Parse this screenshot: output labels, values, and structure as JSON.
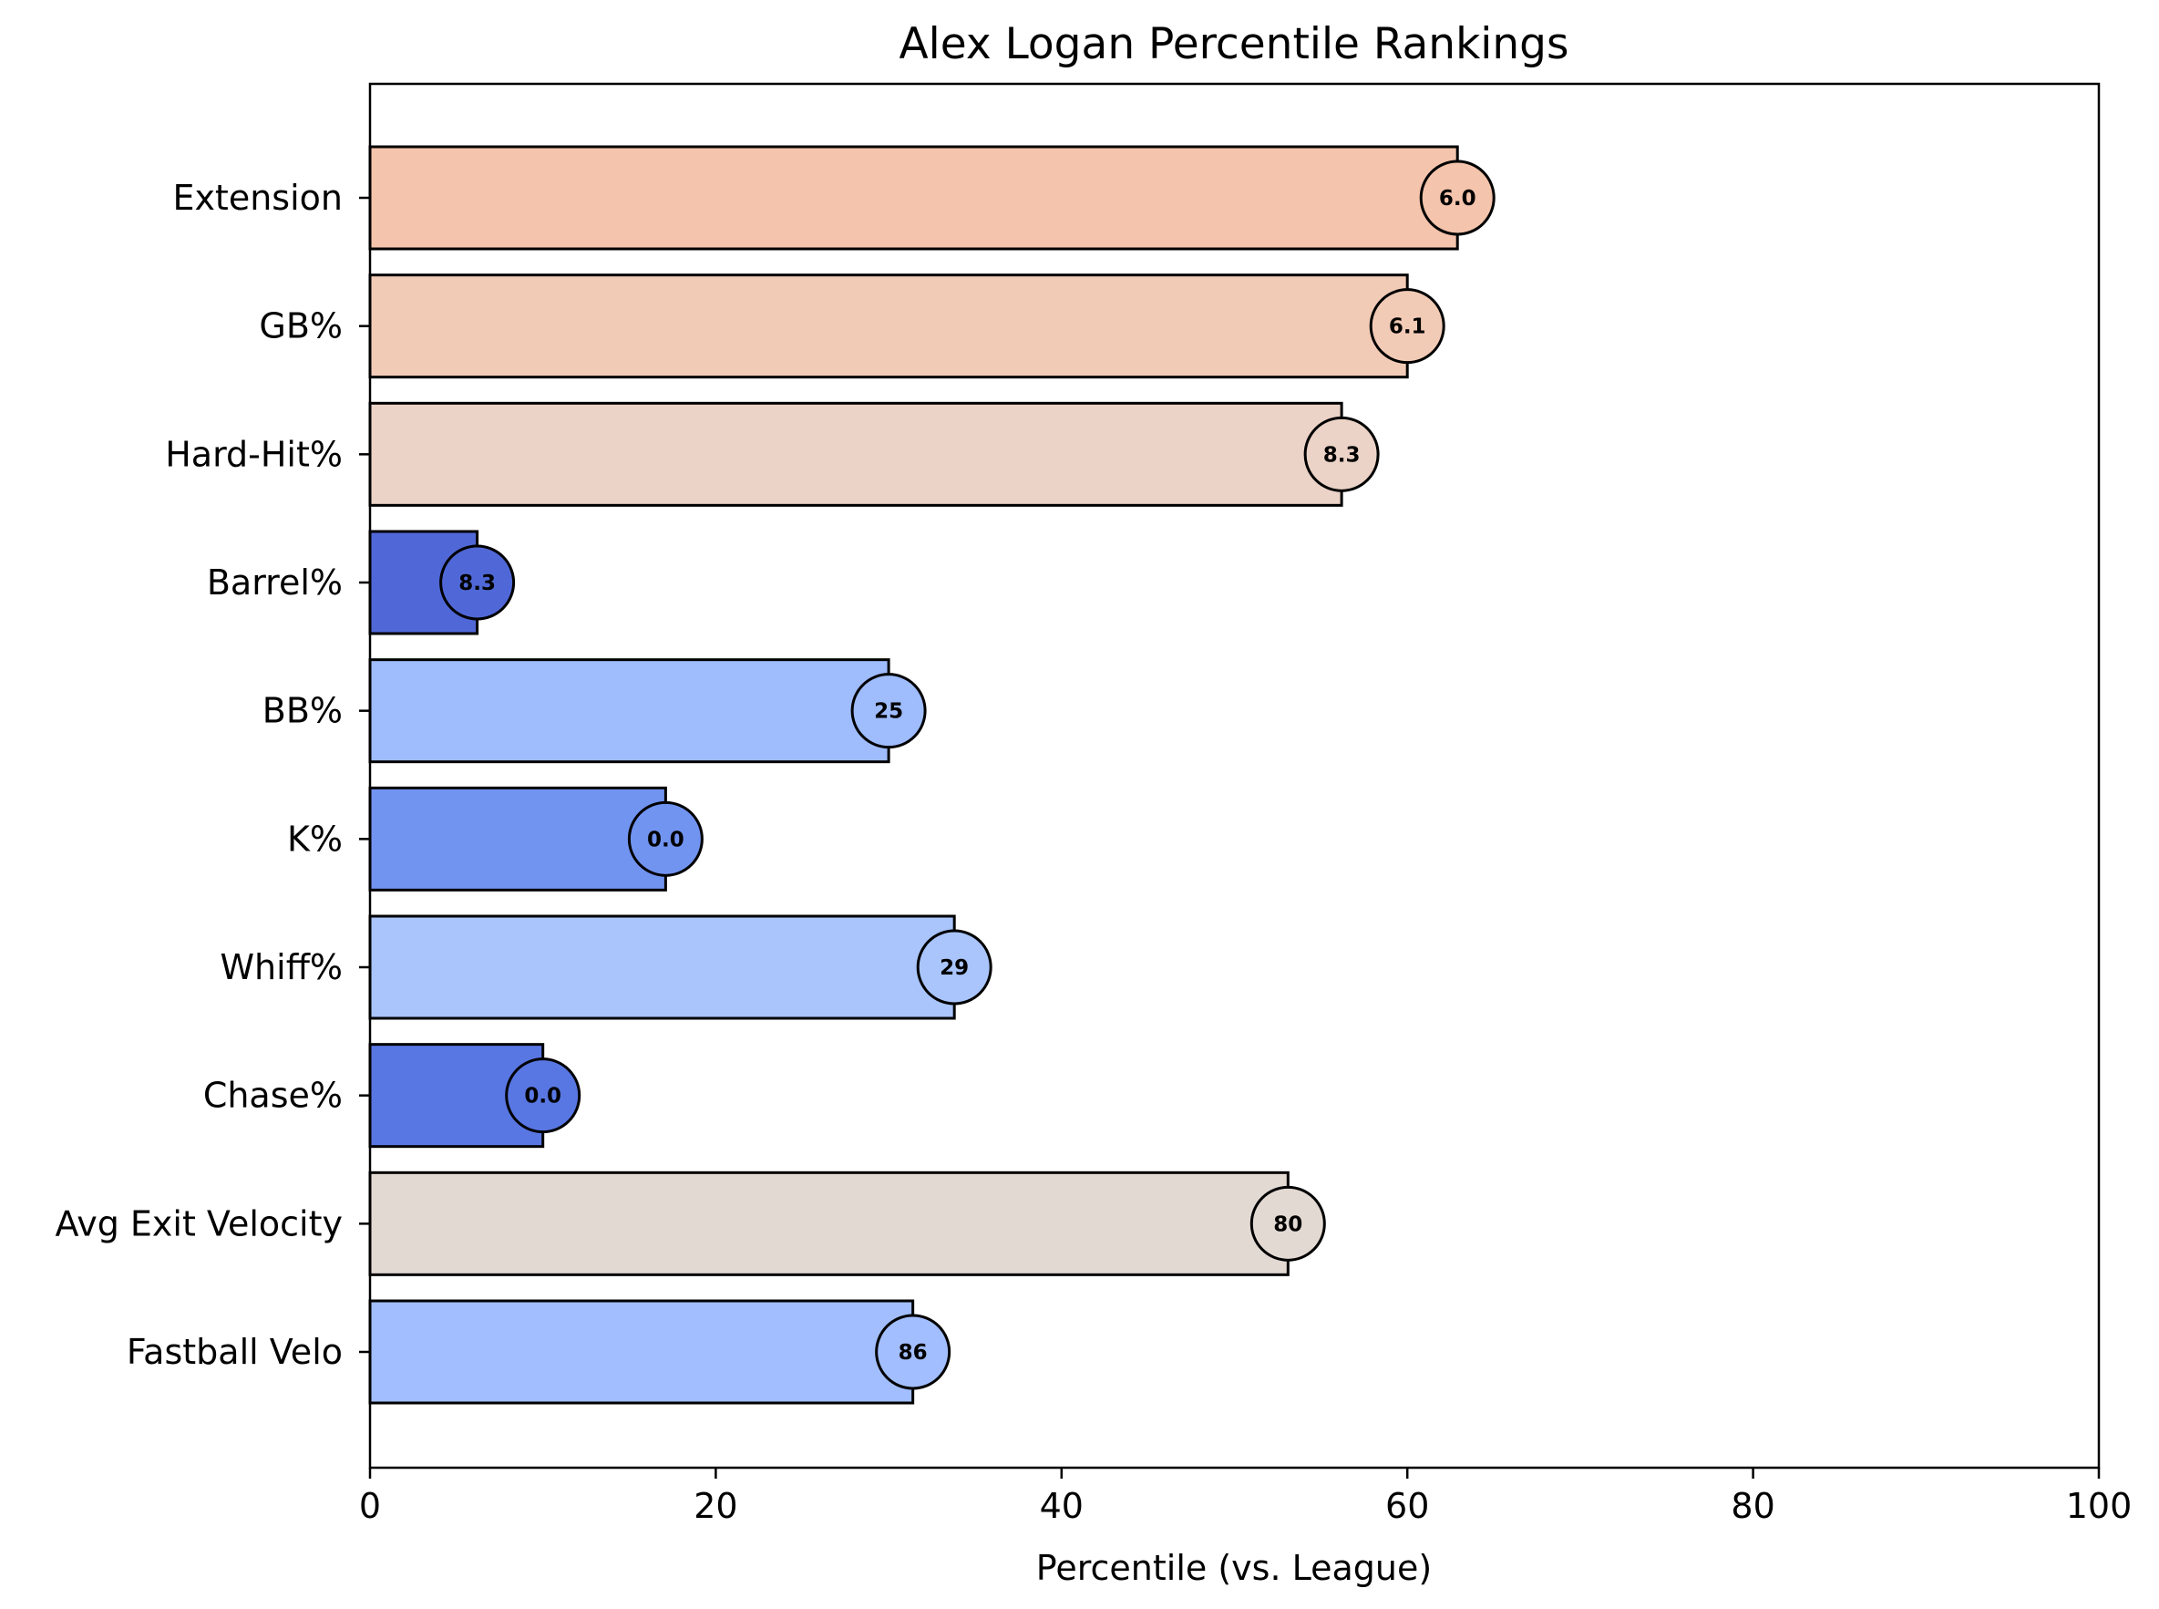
{
  "chart_data": {
    "type": "bar",
    "orientation": "horizontal",
    "title": "Alex Logan Percentile Rankings",
    "xlabel": "Percentile (vs. League)",
    "ylabel": "",
    "xlim": [
      0,
      100
    ],
    "xticks": [
      0,
      20,
      40,
      60,
      80,
      100
    ],
    "grid": false,
    "categories": [
      "Extension",
      "GB%",
      "Hard-Hit%",
      "Barrel%",
      "BB%",
      "K%",
      "Whiff%",
      "Chase%",
      "Avg Exit Velocity",
      "Fastball Velo"
    ],
    "values": [
      62.9,
      60.0,
      56.2,
      6.2,
      30.0,
      17.1,
      33.8,
      10.0,
      53.1,
      31.4
    ],
    "value_labels": [
      "6.0",
      "6.1",
      "8.3",
      "8.3",
      "25",
      "0.0",
      "29",
      "0.0",
      "80",
      "86"
    ],
    "colors": [
      "#f4c4ac",
      "#f2cbb7",
      "#ecd3c7",
      "#5068d7",
      "#9fbcfd",
      "#7294f1",
      "#a9c5fc",
      "#5977e3",
      "#e3d9d3",
      "#a2befe"
    ]
  }
}
